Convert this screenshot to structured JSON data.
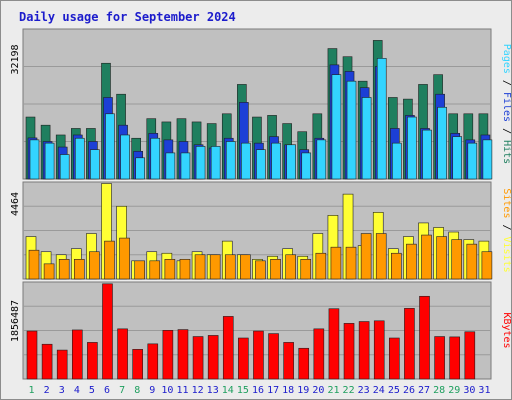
{
  "title": "Daily usage for September 2024",
  "colors": {
    "background": "#ececec",
    "plot_bg": "#c0c0c0",
    "hits": "#1f7f5f",
    "files": "#1c3fd6",
    "pages": "#33d4ff",
    "visits": "#ffff33",
    "sites": "#ff9900",
    "kbytes": "#ff0000",
    "title": "#1c1ccc",
    "weekend_label": "#1f9f5f",
    "weekday_label": "#1c1ccc"
  },
  "chart_data": [
    {
      "type": "bar",
      "panel": "hits_files_pages",
      "categories": [
        "1",
        "2",
        "3",
        "4",
        "5",
        "6",
        "7",
        "8",
        "9",
        "10",
        "11",
        "12",
        "13",
        "14",
        "15",
        "16",
        "17",
        "18",
        "19",
        "20",
        "21",
        "22",
        "23",
        "24",
        "25",
        "26",
        "27",
        "28",
        "29",
        "30",
        "31"
      ],
      "y_tick_label": "32198",
      "ylim": [
        0,
        46000
      ],
      "series": [
        {
          "name": "Hits",
          "values": [
            19000,
            16500,
            13500,
            15500,
            15500,
            35500,
            26000,
            12500,
            18500,
            17500,
            18500,
            17500,
            17000,
            20000,
            29000,
            19000,
            19500,
            17000,
            14500,
            20000,
            40000,
            37500,
            30000,
            42500,
            25000,
            24500,
            29000,
            32000,
            20000,
            20000,
            20000
          ]
        },
        {
          "name": "Files",
          "values": [
            12600,
            11500,
            9800,
            13500,
            11500,
            25000,
            16500,
            8500,
            14000,
            12000,
            11500,
            10500,
            9500,
            12500,
            23500,
            11000,
            13000,
            10500,
            9000,
            12500,
            35000,
            33000,
            28000,
            34500,
            15500,
            19500,
            15500,
            26000,
            14000,
            12000,
            13500
          ]
        },
        {
          "name": "Pages",
          "values": [
            12000,
            11000,
            7500,
            12500,
            9000,
            20000,
            13500,
            6500,
            12500,
            8000,
            8000,
            10000,
            10000,
            11500,
            11000,
            9000,
            11000,
            10500,
            8000,
            12000,
            32000,
            30000,
            25000,
            37000,
            11000,
            19000,
            15000,
            22000,
            13000,
            11000,
            12000
          ]
        }
      ],
      "legend": "right-vertical"
    },
    {
      "type": "bar",
      "panel": "visits_sites",
      "categories": [
        "1",
        "2",
        "3",
        "4",
        "5",
        "6",
        "7",
        "8",
        "9",
        "10",
        "11",
        "12",
        "13",
        "14",
        "15",
        "16",
        "17",
        "18",
        "19",
        "20",
        "21",
        "22",
        "23",
        "24",
        "25",
        "26",
        "27",
        "28",
        "29",
        "30",
        "31"
      ],
      "y_tick_label": "4464",
      "ylim": [
        0,
        6400
      ],
      "series": [
        {
          "name": "Visits",
          "values": [
            2800,
            1800,
            1600,
            2000,
            3000,
            6300,
            4800,
            1200,
            1800,
            1700,
            1200,
            1800,
            1600,
            2500,
            1600,
            1300,
            1500,
            2000,
            1500,
            3000,
            4200,
            5600,
            2200,
            4400,
            2000,
            2800,
            3700,
            3400,
            3100,
            2600,
            2500
          ]
        },
        {
          "name": "Sites",
          "values": [
            1900,
            1000,
            1300,
            1300,
            1800,
            2500,
            2700,
            1200,
            1200,
            1300,
            1300,
            1600,
            1600,
            1600,
            1600,
            1200,
            1300,
            1600,
            1300,
            1700,
            2100,
            2100,
            3000,
            3000,
            1700,
            2300,
            2900,
            2800,
            2600,
            2300,
            1800
          ]
        }
      ],
      "legend": "right-vertical"
    },
    {
      "type": "bar",
      "panel": "kbytes",
      "categories": [
        "1",
        "2",
        "3",
        "4",
        "5",
        "6",
        "7",
        "8",
        "9",
        "10",
        "11",
        "12",
        "13",
        "14",
        "15",
        "16",
        "17",
        "18",
        "19",
        "20",
        "21",
        "22",
        "23",
        "24",
        "25",
        "26",
        "27",
        "28",
        "29",
        "30",
        "31"
      ],
      "y_tick_label": "1856487",
      "ylim": [
        0,
        2650000
      ],
      "series": [
        {
          "name": "KBytes",
          "values": [
            1310000,
            950000,
            790000,
            1340000,
            1000000,
            2600000,
            1370000,
            810000,
            960000,
            1330000,
            1350000,
            1160000,
            1190000,
            1710000,
            1120000,
            1310000,
            1240000,
            1000000,
            840000,
            1370000,
            1920000,
            1520000,
            1570000,
            1590000,
            1120000,
            1930000,
            2260000,
            1160000,
            1150000,
            1290000,
            0
          ]
        }
      ],
      "legend": "right-vertical"
    }
  ],
  "weekend_days": [
    1,
    7,
    8,
    14,
    15,
    21,
    22,
    28,
    29
  ]
}
